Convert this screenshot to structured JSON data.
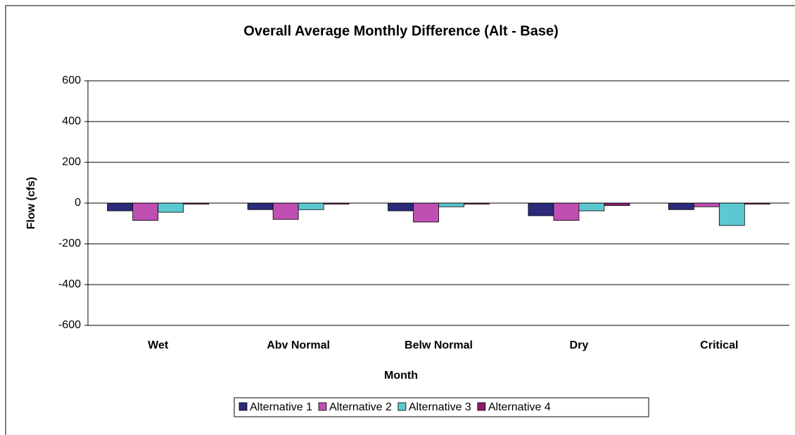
{
  "chart_data": {
    "type": "bar",
    "title": "Overall Average Monthly Difference (Alt - Base)",
    "x_label": "Month",
    "y_label": "Flow (cfs)",
    "categories": [
      "Wet",
      "Abv Normal",
      "Belw Normal",
      "Dry",
      "Critical"
    ],
    "series": [
      {
        "name": "Alternative 1",
        "color": "#2b2b7a",
        "values": [
          -38,
          -32,
          -38,
          -62,
          -32
        ]
      },
      {
        "name": "Alternative 2",
        "color": "#c04fb3",
        "values": [
          -85,
          -80,
          -93,
          -85,
          -18
        ]
      },
      {
        "name": "Alternative 3",
        "color": "#5cc9d1",
        "values": [
          -45,
          -32,
          -18,
          -38,
          -110
        ]
      },
      {
        "name": "Alternative 4",
        "color": "#8a1c6c",
        "values": [
          -5,
          -5,
          -5,
          -12,
          -5
        ]
      }
    ],
    "ylim": [
      -600,
      600
    ],
    "yticks": [
      -600,
      -400,
      -200,
      0,
      200,
      400,
      600
    ],
    "grid": true,
    "legend": "bottom"
  }
}
